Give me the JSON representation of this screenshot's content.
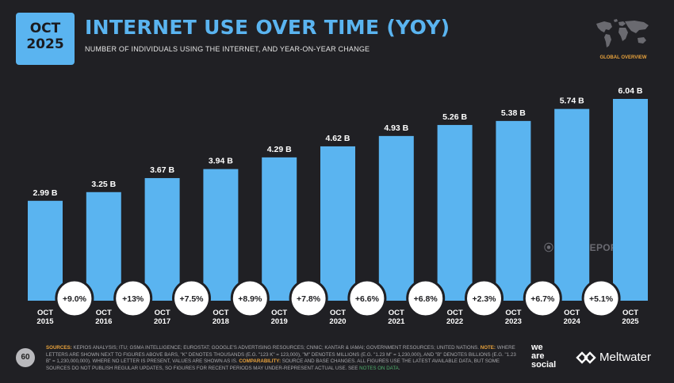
{
  "badge": {
    "month": "OCT",
    "year": "2025"
  },
  "title": "INTERNET USE OVER TIME (YOY)",
  "subtitle": "NUMBER OF INDIVIDUALS USING THE INTERNET, AND YEAR-ON-YEAR CHANGE",
  "map_label": "GLOBAL OVERVIEW",
  "watermark": "DATAREPORTAL",
  "page_number": "60",
  "footnote": {
    "sources_label": "SOURCES:",
    "sources_text": " KEPIOS ANALYSIS; ITU; GSMA INTELLIGENCE; EUROSTAT; GOOGLE'S ADVERTISING RESOURCES; CNNIC; KANTAR & IAMAI; GOVERNMENT RESOURCES; UNITED NATIONS.",
    "note_label": " NOTE:",
    "note_text": " WHERE LETTERS ARE SHOWN NEXT TO FIGURES ABOVE BARS, \"K\" DENOTES THOUSANDS (E.G. \"123 K\" = 123,000), \"M\" DENOTES MILLIONS (E.G. \"1.23 M\" = 1,230,000), AND \"B\" DENOTES BILLIONS (E.G. \"1.23 B\" = 1,230,000,000). WHERE NO LETTER IS PRESENT, VALUES ARE SHOWN AS IS.",
    "comp_label": " COMPARABILITY:",
    "comp_text": " SOURCE AND BASE CHANGES. ALL FIGURES USE THE LATEST AVAILABLE DATA, BUT SOME SOURCES DO NOT PUBLISH REGULAR UPDATES, SO FIGURES FOR RECENT PERIODS MAY UNDER-REPRESENT ACTUAL USE. SEE",
    "link_text": " NOTES ON DATA",
    "end": "."
  },
  "brand": {
    "line1": "we",
    "line2": "are",
    "line3": "social",
    "partner": "Meltwater"
  },
  "colors": {
    "accent": "#5ab4f0",
    "bar": "#5ab4f0",
    "highlight": "#e8a23c",
    "link": "#4fb06d"
  },
  "chart_data": {
    "type": "bar",
    "categories": [
      "OCT 2015",
      "OCT 2016",
      "OCT 2017",
      "OCT 2018",
      "OCT 2019",
      "OCT 2020",
      "OCT 2021",
      "OCT 2022",
      "OCT 2023",
      "OCT 2024",
      "OCT 2025"
    ],
    "category_lines": [
      [
        "OCT",
        "2015"
      ],
      [
        "OCT",
        "2016"
      ],
      [
        "OCT",
        "2017"
      ],
      [
        "OCT",
        "2018"
      ],
      [
        "OCT",
        "2019"
      ],
      [
        "OCT",
        "2020"
      ],
      [
        "OCT",
        "2021"
      ],
      [
        "OCT",
        "2022"
      ],
      [
        "OCT",
        "2023"
      ],
      [
        "OCT",
        "2024"
      ],
      [
        "OCT",
        "2025"
      ]
    ],
    "values": [
      2.99,
      3.25,
      3.67,
      3.94,
      4.29,
      4.62,
      4.93,
      5.26,
      5.38,
      5.74,
      6.04
    ],
    "value_labels": [
      "2.99 B",
      "3.25 B",
      "3.67 B",
      "3.94 B",
      "4.29 B",
      "4.62 B",
      "4.93 B",
      "5.26 B",
      "5.38 B",
      "5.74 B",
      "6.04 B"
    ],
    "yoy_changes": [
      "+9.0%",
      "+13%",
      "+7.5%",
      "+8.9%",
      "+7.8%",
      "+6.6%",
      "+6.8%",
      "+2.3%",
      "+6.7%",
      "+5.1%"
    ],
    "unit": "B",
    "ylim": [
      0,
      6.04
    ],
    "grid": false,
    "legend": "none"
  }
}
